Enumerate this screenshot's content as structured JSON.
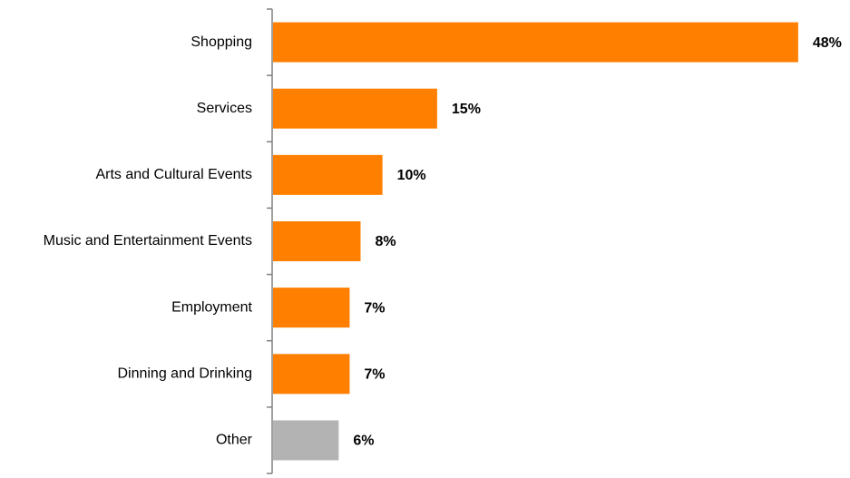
{
  "chart_data": {
    "type": "bar",
    "orientation": "horizontal",
    "categories": [
      "Shopping",
      "Services",
      "Arts and Cultural Events",
      "Music and Entertainment Events",
      "Employment",
      "Dinning and Drinking",
      "Other"
    ],
    "values": [
      48,
      15,
      10,
      8,
      7,
      7,
      6
    ],
    "value_labels": [
      "48%",
      "15%",
      "10%",
      "8%",
      "7%",
      "7%",
      "6%"
    ],
    "bar_colors": [
      "#ff7f00",
      "#ff7f00",
      "#ff7f00",
      "#ff7f00",
      "#ff7f00",
      "#ff7f00",
      "#b3b3b3"
    ],
    "title": "",
    "xlabel": "",
    "ylabel": "",
    "grid": false,
    "legend": "none"
  }
}
